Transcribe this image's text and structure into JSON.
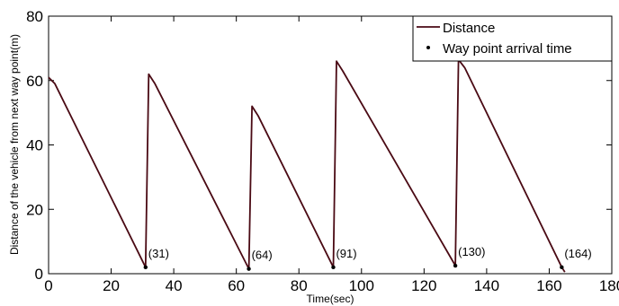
{
  "chart_data": {
    "type": "line",
    "xlabel": "Time(sec)",
    "ylabel": "Distance of the vehicle from next way point(m)",
    "xlim": [
      0,
      180
    ],
    "ylim": [
      0,
      80
    ],
    "xticks": [
      0,
      20,
      40,
      60,
      80,
      100,
      120,
      140,
      160,
      180
    ],
    "yticks": [
      0,
      20,
      40,
      60,
      80
    ],
    "grid": false,
    "legend_position": "top-right",
    "colors": {
      "line": "#4a0a14",
      "marker": "#000000"
    },
    "series": [
      {
        "name": "Distance",
        "x": [
          0,
          2,
          31,
          31,
          32,
          34,
          64,
          64,
          65,
          67,
          91,
          91,
          92,
          94,
          130,
          130,
          131,
          133,
          164,
          165
        ],
        "y": [
          61,
          59,
          2,
          2,
          62,
          59,
          1.5,
          1.5,
          52,
          49,
          2,
          2,
          66,
          63,
          2.5,
          2.5,
          66.5,
          64,
          2,
          0.5
        ]
      },
      {
        "name": "Way point arrival time",
        "x": [
          31,
          64,
          91,
          130,
          164
        ],
        "y": [
          2,
          1.5,
          2,
          2.5,
          2
        ]
      }
    ],
    "annotations": [
      {
        "text": "(31)",
        "x": 31,
        "y": 2
      },
      {
        "text": "(64)",
        "x": 64,
        "y": 1.5
      },
      {
        "text": "(91)",
        "x": 91,
        "y": 2
      },
      {
        "text": "(130)",
        "x": 130,
        "y": 2.5
      },
      {
        "text": "(164)",
        "x": 164,
        "y": 2
      }
    ]
  }
}
